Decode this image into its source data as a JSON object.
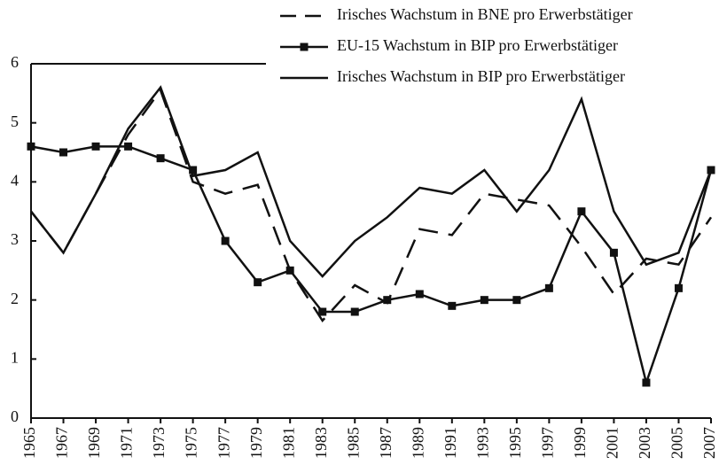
{
  "chart_data": {
    "type": "line",
    "categories": [
      "1965",
      "1967",
      "1969",
      "1971",
      "1973",
      "1975",
      "1977",
      "1979",
      "1981",
      "1983",
      "1985",
      "1987",
      "1989",
      "1991",
      "1993",
      "1995",
      "1997",
      "1999",
      "2001",
      "2003",
      "2005",
      "2007"
    ],
    "series": [
      {
        "name": "Irisches Wachstum in BNE pro Erwerbstätiger",
        "color": "#111111",
        "dash": true,
        "marker": false,
        "values": [
          3.5,
          2.8,
          3.8,
          4.8,
          5.55,
          4.0,
          3.8,
          3.95,
          2.5,
          1.65,
          2.25,
          1.95,
          3.2,
          3.1,
          3.8,
          3.7,
          3.6,
          2.9,
          2.1,
          2.7,
          2.6,
          3.4
        ]
      },
      {
        "name": "EU-15 Wachstum in BIP pro Erwerbstätiger",
        "color": "#111111",
        "dash": false,
        "marker": true,
        "values": [
          4.6,
          4.5,
          4.6,
          4.6,
          4.4,
          4.2,
          3.0,
          2.3,
          2.5,
          1.8,
          1.8,
          2.0,
          2.1,
          1.9,
          2.0,
          2.0,
          2.2,
          3.5,
          2.8,
          0.6,
          2.2,
          4.2
        ]
      },
      {
        "name": "Irisches Wachstum in BIP pro Erwerbstätiger",
        "color": "#111111",
        "dash": false,
        "marker": false,
        "values": [
          3.5,
          2.8,
          3.8,
          4.9,
          5.6,
          4.1,
          4.2,
          4.5,
          3.0,
          2.4,
          3.0,
          3.4,
          3.9,
          3.8,
          4.2,
          3.5,
          4.2,
          5.4,
          3.5,
          2.6,
          2.8,
          4.2
        ]
      }
    ],
    "ylim": [
      0,
      6
    ],
    "yticks": [
      0,
      1,
      2,
      3,
      4,
      5,
      6
    ],
    "grid": false
  }
}
